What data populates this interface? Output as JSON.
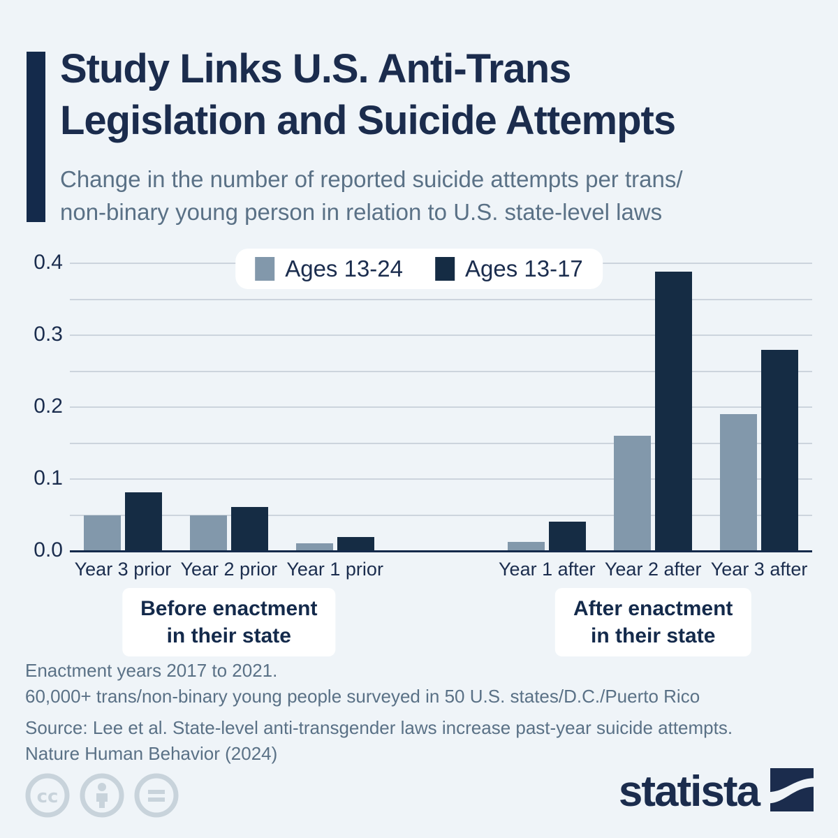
{
  "header": {
    "title_line1": "Study Links U.S. Anti-Trans",
    "title_line2": "Legislation and Suicide Attempts",
    "subtitle_line1": "Change in the number of reported suicide attempts per trans/",
    "subtitle_line2": "non-binary young person in relation to U.S. state-level laws"
  },
  "legend": {
    "items": [
      {
        "label": "Ages 13-24",
        "color": "#8298ab"
      },
      {
        "label": "Ages 13-17",
        "color": "#152c44"
      }
    ]
  },
  "chart_data": {
    "type": "bar",
    "title": "Change in the number of reported suicide attempts per trans/non-binary young person in relation to U.S. state-level laws",
    "categories": [
      "Year 3 prior",
      "Year 2 prior",
      "Year 1 prior",
      "Year 1 after",
      "Year 2 after",
      "Year 3 after"
    ],
    "series": [
      {
        "name": "Ages 13-24",
        "color": "#8298ab",
        "values": [
          0.05,
          0.05,
          0.011,
          0.013,
          0.16,
          0.19
        ]
      },
      {
        "name": "Ages 13-17",
        "color": "#152c44",
        "values": [
          0.082,
          0.061,
          0.019,
          0.041,
          0.388,
          0.28
        ]
      }
    ],
    "ylim": [
      0,
      0.4
    ],
    "yticks_labeled": [
      0,
      0.1,
      0.2,
      0.3,
      0.4
    ],
    "grid_step": 0.05,
    "grid": "on",
    "legend_position": "top-center",
    "cluster_gap_after_category_index": 2,
    "group_annotations": [
      {
        "line1": "Before enactment",
        "line2": "in their state",
        "span": [
          0,
          2
        ]
      },
      {
        "line1": "After enactment",
        "line2": "in their state",
        "span": [
          3,
          5
        ]
      }
    ]
  },
  "footnotes": {
    "line1": "Enactment years 2017 to 2021.",
    "line2": "60,000+ trans/non-binary young people surveyed in 50 U.S. states/D.C./Puerto Rico",
    "source_line1": "Source: Lee et al. State-level anti-transgender laws increase past-year suicide attempts.",
    "source_line2": "Nature Human Behavior (2024)"
  },
  "branding": {
    "wordmark": "statista",
    "license_icons": [
      "cc-icon",
      "attribution-icon",
      "no-derivatives-icon"
    ]
  },
  "colors": {
    "background": "#eff4f8",
    "bar_gray": "#8298ab",
    "bar_navy": "#152c44",
    "grid": "#ccd4dd",
    "axis": "#142a4b",
    "text_navy": "#1b2d4e",
    "text_gray": "#5a7186",
    "icon_gray": "#c8d3db"
  }
}
